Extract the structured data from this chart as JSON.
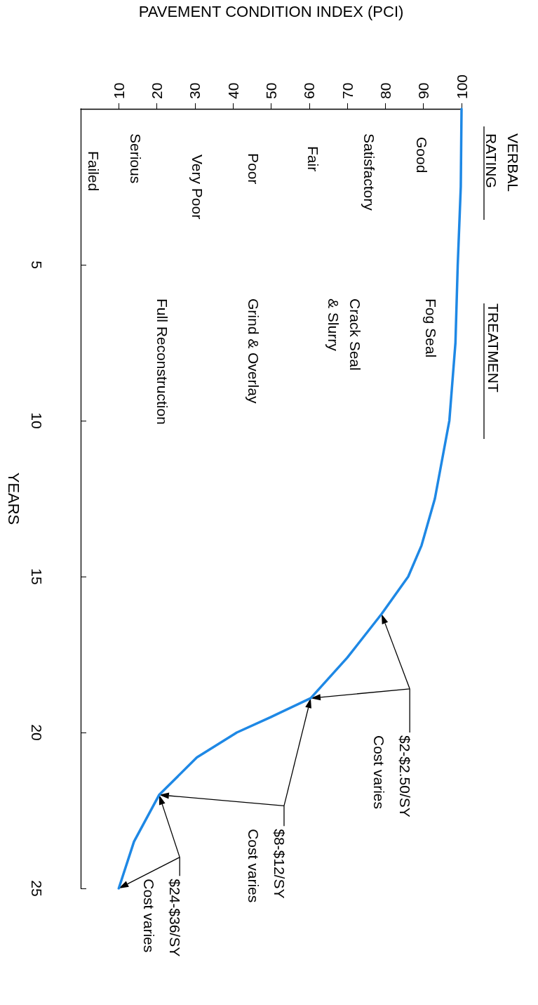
{
  "chart_data": {
    "type": "line",
    "xlabel": "PAVEMENT CONDITION INDEX (PCI)",
    "ylabel": "YEARS",
    "x": [
      100,
      99.8,
      99,
      98.4,
      96.8,
      93,
      89.5,
      86,
      79,
      70,
      60.4,
      50,
      41,
      30.5,
      20.6,
      14,
      10
    ],
    "series": [
      {
        "color": "#1e88e5",
        "values": [
          0,
          2.5,
          5,
          7.5,
          10,
          12.5,
          14,
          15,
          16.2,
          17.6,
          18.9,
          19.5,
          20,
          20.8,
          22,
          23.5,
          25
        ]
      }
    ],
    "xlim": [
      0,
      100
    ],
    "xticks": [
      10,
      20,
      30,
      40,
      50,
      60,
      70,
      80,
      90,
      100
    ],
    "ylim": [
      25,
      0
    ],
    "yticks": [
      5,
      10,
      15,
      20,
      25
    ],
    "grid": false,
    "marker": "none",
    "line_style": "solid",
    "annotations": [
      "VERBAL\nRATING",
      "Good",
      "Satisfactory",
      "Fair",
      "Poor",
      "Very Poor",
      "Serious",
      "Failed",
      "TREATMENT",
      "Fog Seal",
      "Crack Seal\n& Slurry",
      "Grind & Overlay",
      "Full Reconstruction",
      "$2-$2.50/SY\nCost varies",
      "$8-$12/SY\nCost varies",
      "$24-$36/SY\nCost varies"
    ]
  }
}
